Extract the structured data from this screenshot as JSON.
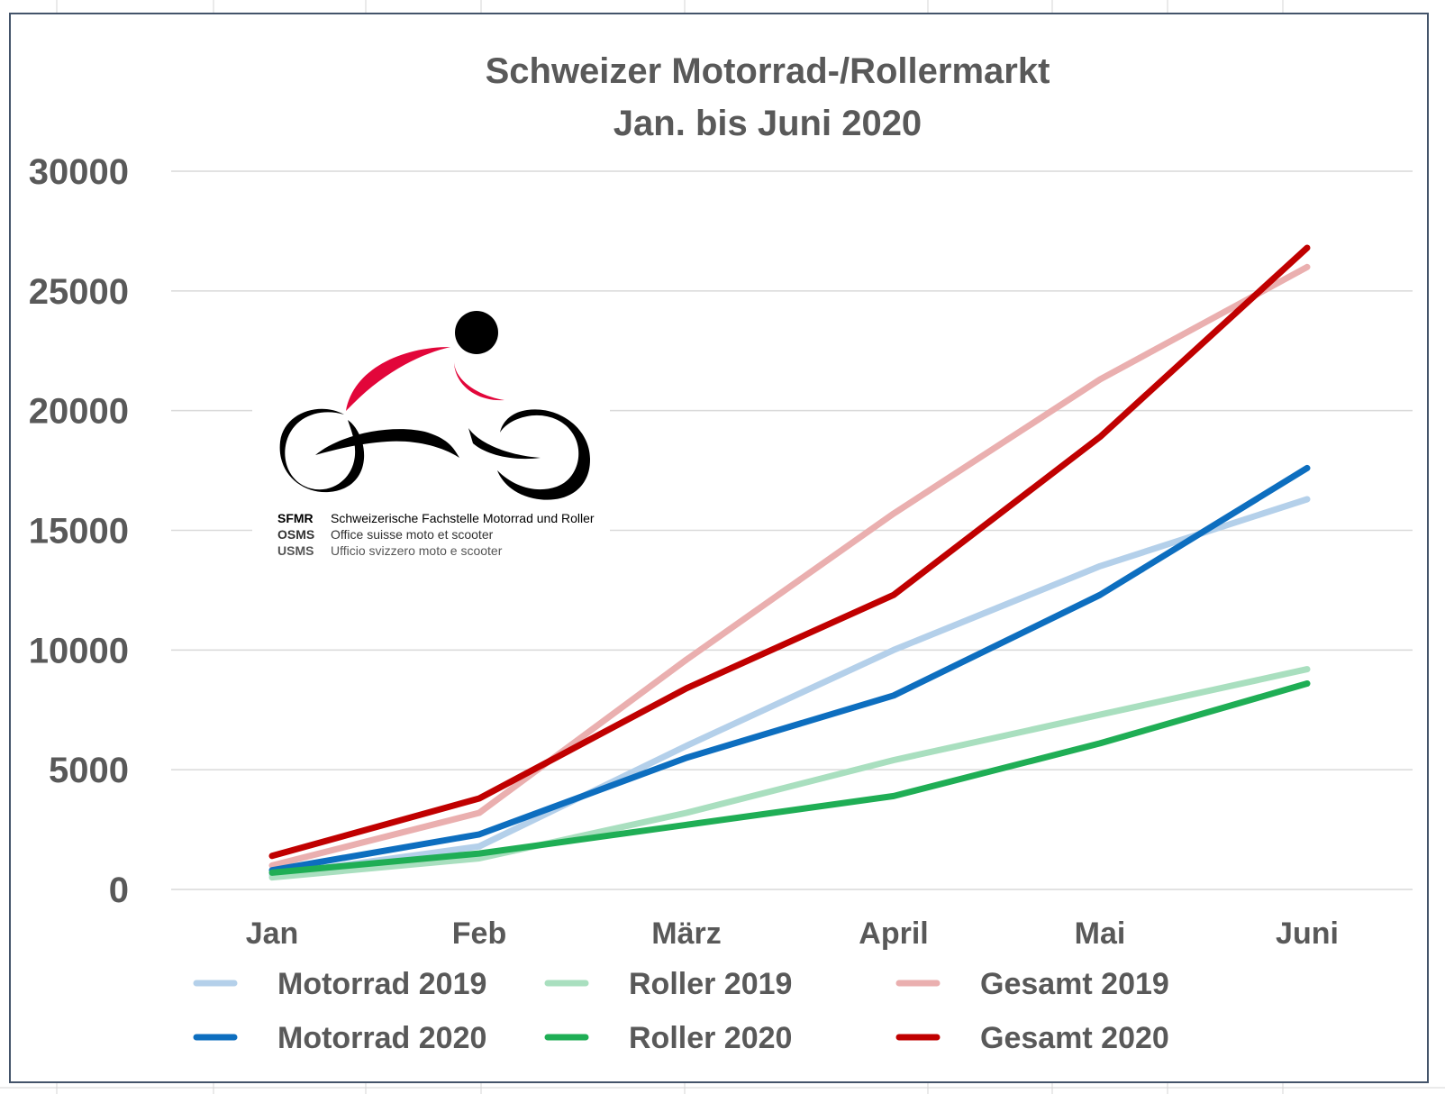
{
  "chart_data": {
    "type": "line",
    "title": "Schweizer Motorrad-/Rollermarkt",
    "subtitle": "Jan. bis Juni 2020",
    "categories": [
      "Jan",
      "Feb",
      "März",
      "April",
      "Mai",
      "Juni"
    ],
    "ylim": [
      0,
      30000
    ],
    "yticks": [
      "0",
      "5000",
      "10000",
      "15000",
      "20000",
      "25000",
      "30000"
    ],
    "grid": true,
    "legend_position": "bottom",
    "series": [
      {
        "name": "Motorrad 2019",
        "color": "#b4d0ea",
        "values": [
          600,
          1800,
          6000,
          10000,
          13500,
          16300
        ]
      },
      {
        "name": "Roller 2019",
        "color": "#a9dfbf",
        "values": [
          500,
          1300,
          3200,
          5400,
          7300,
          9200
        ]
      },
      {
        "name": "Gesamt 2019",
        "color": "#eaafaf",
        "values": [
          1000,
          3200,
          9600,
          15700,
          21300,
          26000
        ]
      },
      {
        "name": "Motorrad 2020",
        "color": "#0d6ebf",
        "values": [
          800,
          2300,
          5500,
          8100,
          12300,
          17600
        ]
      },
      {
        "name": "Roller 2020",
        "color": "#1fae55",
        "values": [
          700,
          1500,
          2700,
          3900,
          6100,
          8600
        ]
      },
      {
        "name": "Gesamt 2020",
        "color": "#c00000",
        "values": [
          1400,
          3800,
          8400,
          12300,
          18900,
          26800
        ]
      }
    ]
  },
  "logo": {
    "lines": [
      {
        "abbr": "SFMR",
        "text": "Schweizerische Fachstelle Motorrad und Roller"
      },
      {
        "abbr": "OSMS",
        "text": "Office suisse moto et scooter"
      },
      {
        "abbr": "USMS",
        "text": "Ufficio svizzero moto e scooter"
      }
    ],
    "colors": {
      "rider": "#e2063a",
      "black": "#000000"
    }
  }
}
